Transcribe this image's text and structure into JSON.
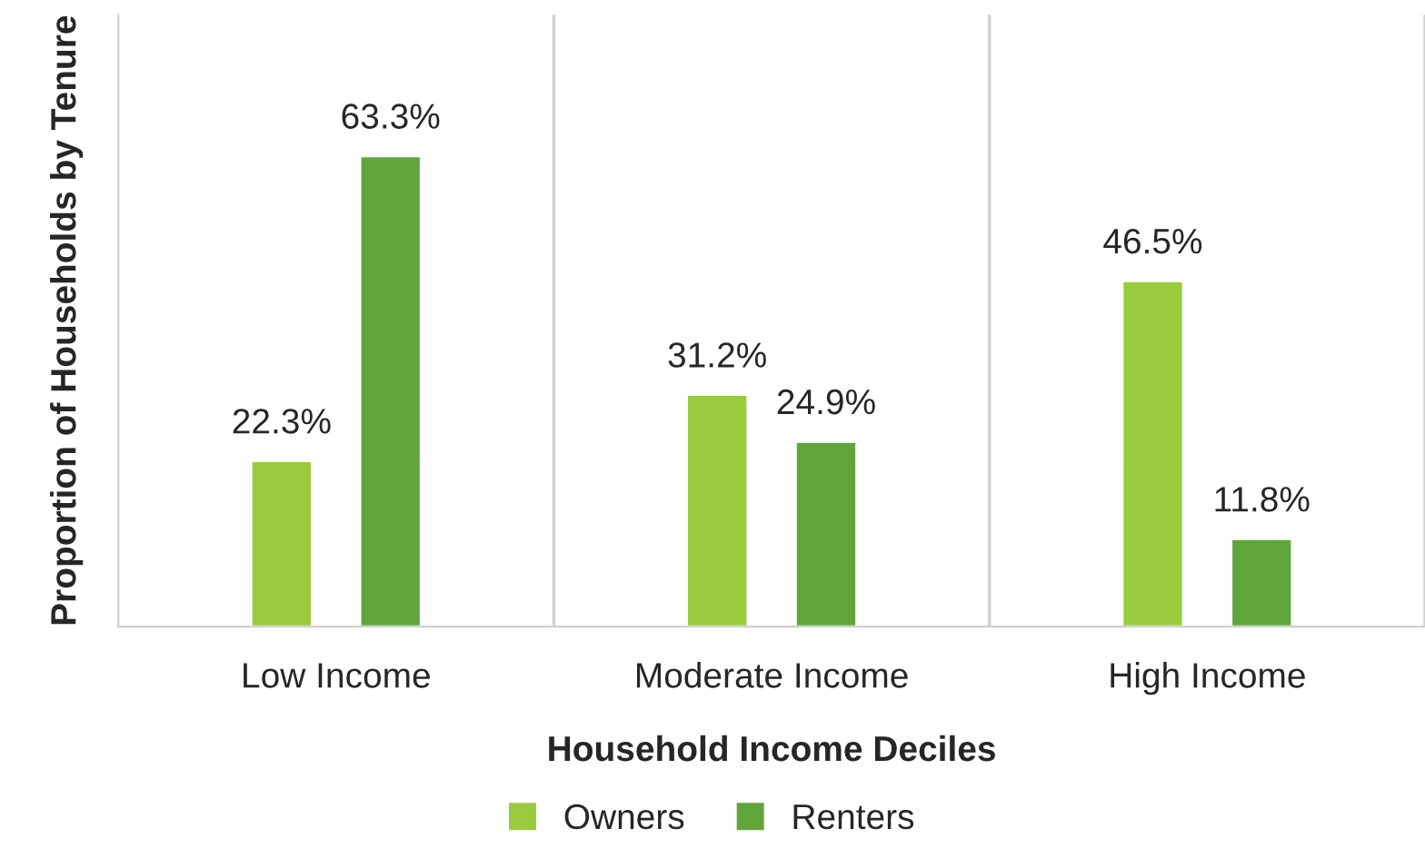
{
  "chart_data": {
    "type": "bar",
    "xlabel": "Household Income Deciles",
    "ylabel": "Proportion of Households by Tenure",
    "categories": [
      "Low Income",
      "Moderate Income",
      "High Income"
    ],
    "series": [
      {
        "name": "Owners",
        "color": "#9acb3c",
        "values": [
          22.3,
          31.2,
          46.5
        ],
        "value_labels": [
          "22.3%",
          "31.2%",
          "46.5%"
        ]
      },
      {
        "name": "Renters",
        "color": "#60a53a",
        "values": [
          63.3,
          24.9,
          11.8
        ],
        "value_labels": [
          "63.3%",
          "24.9%",
          "11.8%"
        ]
      }
    ],
    "grid": "x",
    "legend": "bottom"
  }
}
